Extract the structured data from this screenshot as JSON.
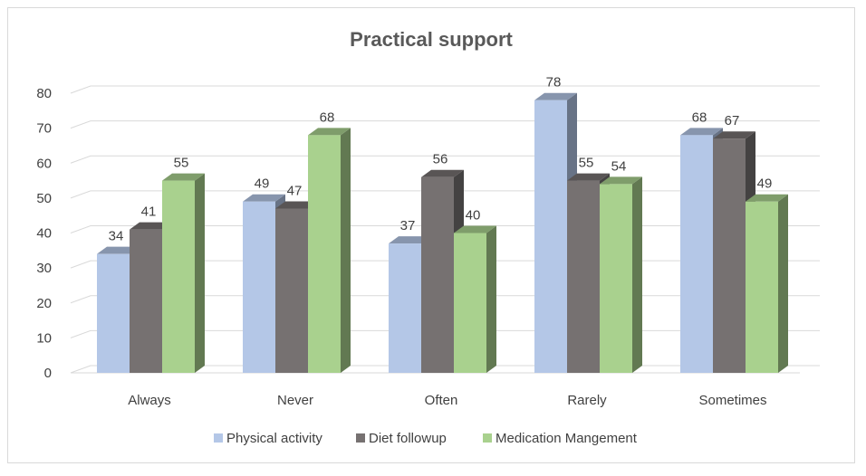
{
  "chart_data": {
    "type": "bar",
    "title": "Practical support",
    "categories": [
      "Always",
      "Never",
      "Often",
      "Rarely",
      "Sometimes"
    ],
    "series": [
      {
        "name": "Physical activity",
        "values": [
          34,
          49,
          37,
          78,
          68
        ],
        "color": "#b4c7e7"
      },
      {
        "name": "Diet followup",
        "values": [
          41,
          47,
          56,
          55,
          67
        ],
        "color": "#767171"
      },
      {
        "name": "Medication Mangement",
        "values": [
          55,
          68,
          40,
          54,
          49
        ],
        "color": "#a9d18e"
      }
    ],
    "yticks": [
      "0",
      "10",
      "20",
      "30",
      "40",
      "50",
      "60",
      "70",
      "80"
    ],
    "ylim": [
      0,
      80
    ],
    "grid": true,
    "legend": "bottom",
    "style": "3d-clustered-column"
  }
}
